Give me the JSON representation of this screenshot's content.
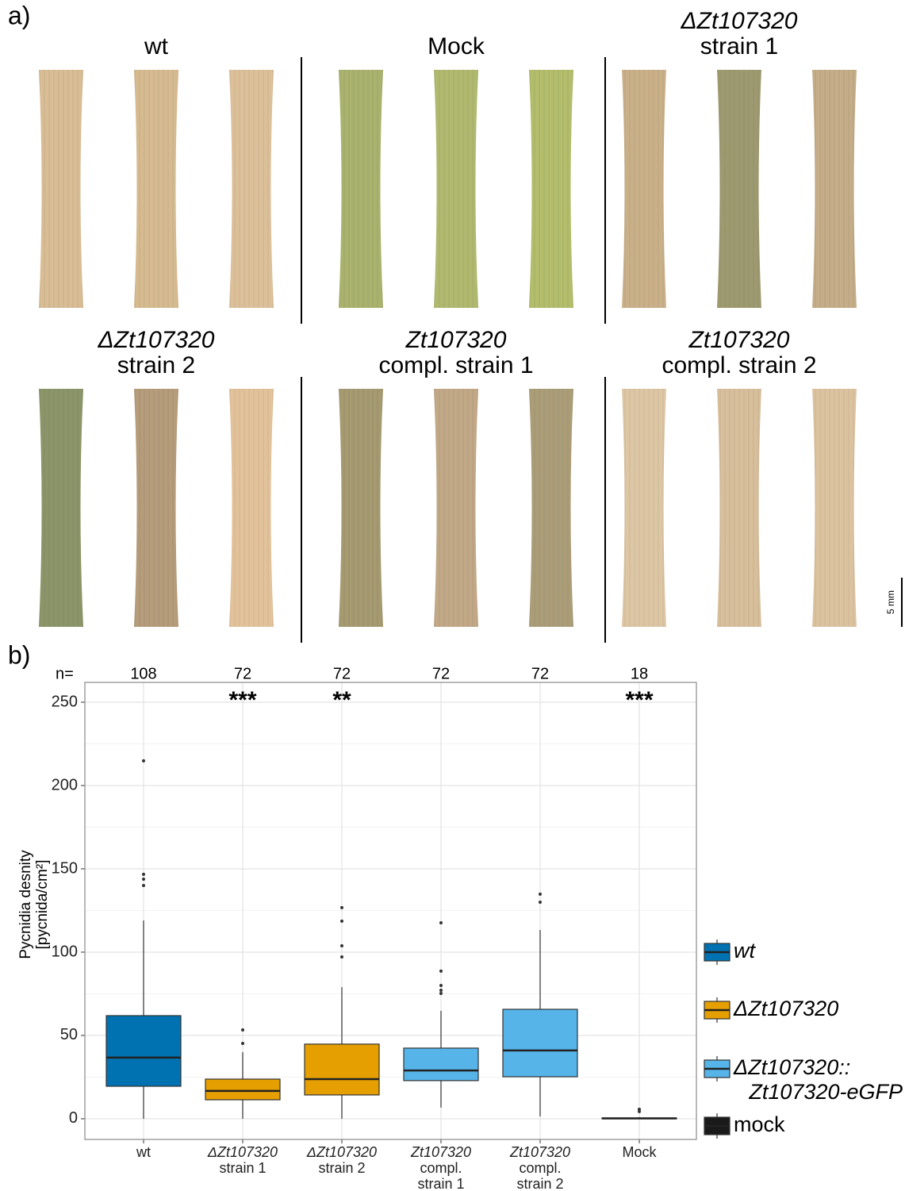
{
  "panel_a": {
    "label": "a)",
    "scale_bar": "5 mm",
    "groups": [
      {
        "title": [
          "wt"
        ],
        "leaf_colors": [
          "#d8bd95",
          "#d6ba90",
          "#dcc09a"
        ]
      },
      {
        "title": [
          "Mock"
        ],
        "leaf_colors": [
          "#a9b36e",
          "#b0b96f",
          "#b3bd6c"
        ]
      },
      {
        "title": [
          "ΔZt107320",
          "strain 1"
        ],
        "leaf_colors": [
          "#c9b089",
          "#9e9a70",
          "#c4ad88"
        ]
      },
      {
        "title": [
          "ΔZt107320",
          "strain 2"
        ],
        "leaf_colors": [
          "#8c9569",
          "#b59c7a",
          "#e2c29a"
        ]
      },
      {
        "title": [
          "Zt107320",
          "compl. strain 1"
        ],
        "leaf_colors": [
          "#a59a70",
          "#c1a887",
          "#ab9d78"
        ]
      },
      {
        "title": [
          "Zt107320",
          "compl. strain 2"
        ],
        "leaf_colors": [
          "#dcc6a4",
          "#d8bf9c",
          "#dcc3a0"
        ]
      }
    ]
  },
  "chart_data": {
    "type": "box",
    "label": "b)",
    "n_label": "n=",
    "n": [
      108,
      72,
      72,
      72,
      72,
      18
    ],
    "significance": [
      null,
      "***",
      "**",
      null,
      null,
      "***"
    ],
    "y_label": [
      "Pycnidia desnity",
      "[pycnida/cm²]"
    ],
    "categories": [
      [
        "wt"
      ],
      [
        "ΔZt107320",
        "strain 1"
      ],
      [
        "ΔZt107320",
        "strain 2"
      ],
      [
        "Zt107320",
        "compl.",
        "strain 1"
      ],
      [
        "Zt107320",
        "compl.",
        "strain 2"
      ],
      [
        "Mock"
      ]
    ],
    "ylim": [
      -12.4,
      261.9
    ],
    "yticks": [
      0,
      50,
      100,
      150,
      200,
      250
    ],
    "minor_yticks": [
      25,
      75,
      125,
      175,
      225
    ],
    "grid": true,
    "series": [
      {
        "name": [
          "wt"
        ],
        "color": "#0072b2",
        "italic": true
      },
      {
        "name": [
          "ΔZt107320"
        ],
        "color": "#e69f00",
        "italic": true
      },
      {
        "name": [
          "ΔZt107320::",
          "Zt107320-eGFP"
        ],
        "color": "#56b4e9",
        "italic": true
      },
      {
        "name": [
          "mock"
        ],
        "color": "#1a1a1a",
        "italic": false
      }
    ],
    "boxes": [
      {
        "series": 0,
        "min": 0,
        "q1": 19.5,
        "median": 36.7,
        "q3": 61.9,
        "max": 119,
        "outliers": [
          140,
          143.8,
          146.7,
          214.8
        ]
      },
      {
        "series": 1,
        "min": 0,
        "q1": 11.4,
        "median": 16.7,
        "q3": 23.8,
        "max": 40,
        "outliers": [
          45.2,
          53.3
        ]
      },
      {
        "series": 1,
        "min": 0,
        "q1": 14.3,
        "median": 23.8,
        "q3": 44.8,
        "max": 79,
        "outliers": [
          97.1,
          103.8,
          118.6,
          126.7
        ]
      },
      {
        "series": 2,
        "min": 6.7,
        "q1": 22.9,
        "median": 29,
        "q3": 42.4,
        "max": 64.8,
        "outliers": [
          75.2,
          77.1,
          80,
          88.6,
          117.6
        ]
      },
      {
        "series": 2,
        "min": 1.4,
        "q1": 25.2,
        "median": 41,
        "q3": 65.7,
        "max": 113.3,
        "outliers": [
          130,
          134.8
        ]
      },
      {
        "series": 3,
        "min": 0,
        "q1": 0,
        "median": 0.2,
        "q3": 0.5,
        "max": 1,
        "outliers": [
          4.3,
          5.7
        ]
      }
    ]
  }
}
